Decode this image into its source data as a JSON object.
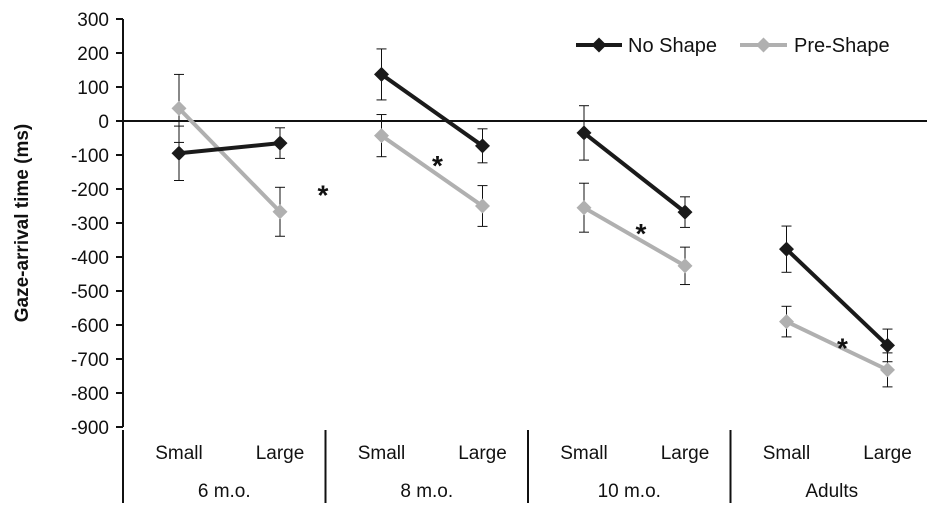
{
  "chart_data": {
    "type": "line",
    "ylabel": "Gaze-arrival time (ms)",
    "xlabel": "",
    "ylim": [
      -900,
      300
    ],
    "yticks": [
      300,
      200,
      100,
      0,
      -100,
      -200,
      -300,
      -400,
      -500,
      -600,
      -700,
      -800,
      -900
    ],
    "grid": false,
    "legend_position": "top-right",
    "groups": [
      {
        "label": "6 m.o.",
        "conditions": [
          "Small",
          "Large"
        ]
      },
      {
        "label": "8 m.o.",
        "conditions": [
          "Small",
          "Large"
        ]
      },
      {
        "label": "10 m.o.",
        "conditions": [
          "Small",
          "Large"
        ]
      },
      {
        "label": "Adults",
        "conditions": [
          "Small",
          "Large"
        ]
      }
    ],
    "series": [
      {
        "name": "No Shape",
        "color": "#1a1a1a",
        "marker": "diamond",
        "values": [
          [
            -95,
            -65
          ],
          [
            137,
            -73
          ],
          [
            -35,
            -268
          ],
          [
            -377,
            -660
          ]
        ],
        "errors": [
          [
            80,
            45
          ],
          [
            75,
            50
          ],
          [
            80,
            45
          ],
          [
            68,
            48
          ]
        ]
      },
      {
        "name": "Pre-Shape",
        "color": "#b0b0b0",
        "marker": "diamond",
        "values": [
          [
            37,
            -267
          ],
          [
            -43,
            -250
          ],
          [
            -255,
            -426
          ],
          [
            -590,
            -732
          ]
        ],
        "errors": [
          [
            100,
            72
          ],
          [
            62,
            60
          ],
          [
            72,
            55
          ],
          [
            45,
            50
          ]
        ]
      }
    ],
    "annotations": [
      {
        "text": "*",
        "group": 0
      },
      {
        "text": "*",
        "group": 1
      },
      {
        "text": "*",
        "group": 2
      },
      {
        "text": "*",
        "group": 3
      }
    ]
  }
}
